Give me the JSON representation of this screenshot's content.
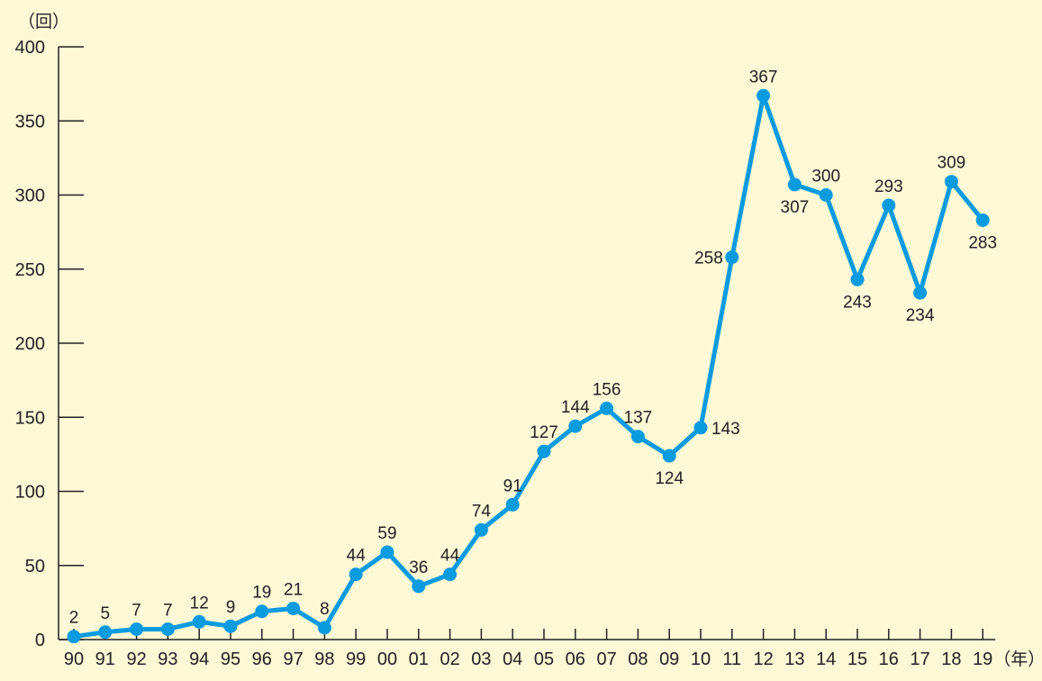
{
  "chart_data": {
    "type": "line",
    "title": "",
    "xlabel": "",
    "ylabel": "",
    "y_unit": "（回）",
    "x_unit": "（年）",
    "categories": [
      "90",
      "91",
      "92",
      "93",
      "94",
      "95",
      "96",
      "97",
      "98",
      "99",
      "00",
      "01",
      "02",
      "03",
      "04",
      "05",
      "06",
      "07",
      "08",
      "09",
      "10",
      "11",
      "12",
      "13",
      "14",
      "15",
      "16",
      "17",
      "18",
      "19"
    ],
    "series": [
      {
        "values": [
          2,
          5,
          7,
          7,
          12,
          9,
          19,
          21,
          8,
          44,
          59,
          36,
          44,
          74,
          91,
          127,
          144,
          156,
          137,
          124,
          143,
          258,
          367,
          307,
          300,
          243,
          293,
          234,
          309,
          283
        ]
      }
    ],
    "ylim": [
      0,
      400
    ],
    "yticks": [
      0,
      50,
      100,
      150,
      200,
      250,
      300,
      350,
      400
    ],
    "grid": false,
    "legend": "none",
    "line_color": "#0b9be0",
    "background": "#fdf8d6",
    "axis_color": "#222222"
  }
}
